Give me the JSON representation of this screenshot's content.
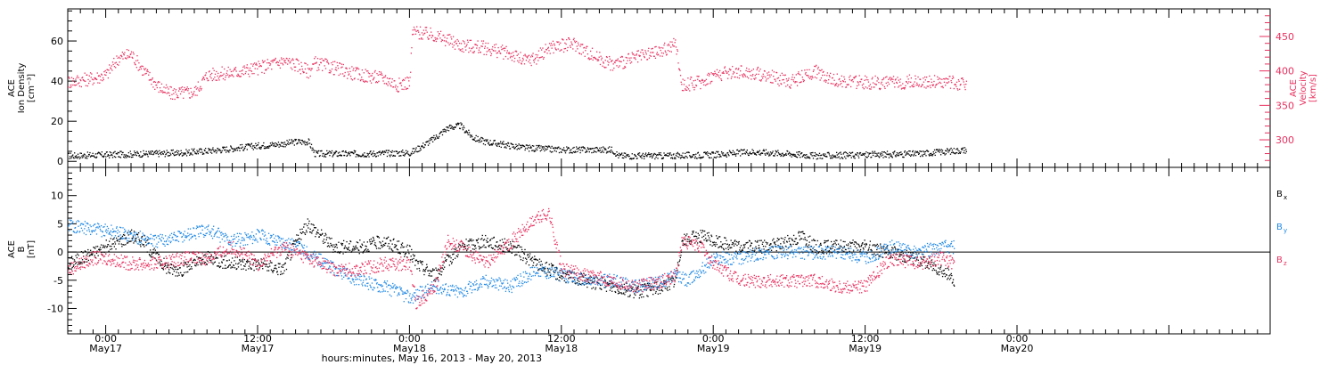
{
  "chart_data": [
    {
      "type": "scatter",
      "panel": "plasma",
      "left_axis": {
        "label_lines": [
          "ACE",
          "Ion Density",
          "[cm⁻³]"
        ],
        "range": [
          -3,
          76
        ],
        "ticks": [
          0,
          20,
          40,
          60
        ]
      },
      "right_axis": {
        "label_lines": [
          "ACE",
          "Velocity",
          "[km/s]"
        ],
        "range": [
          260,
          490
        ],
        "ticks": [
          300,
          350,
          400,
          450
        ],
        "color": "#e8305f"
      },
      "series": [
        {
          "axis": "left",
          "color": "#000000",
          "points": [
            [
              -3,
              3
            ],
            [
              0,
              3.5
            ],
            [
              3,
              4
            ],
            [
              6,
              4.5
            ],
            [
              9,
              6
            ],
            [
              12,
              8
            ],
            [
              14,
              9
            ],
            [
              15,
              10
            ],
            [
              16,
              10
            ],
            [
              16.5,
              4
            ],
            [
              20,
              4
            ],
            [
              24,
              4.5
            ],
            [
              24.5,
              6
            ],
            [
              26,
              12
            ],
            [
              27,
              17
            ],
            [
              28,
              18
            ],
            [
              29,
              12
            ],
            [
              30,
              10
            ],
            [
              33,
              7
            ],
            [
              36,
              6
            ],
            [
              40,
              6
            ],
            [
              40.5,
              3
            ],
            [
              44,
              3
            ],
            [
              48,
              3.5
            ],
            [
              51,
              5
            ],
            [
              54,
              4
            ],
            [
              56,
              3
            ],
            [
              60,
              3.5
            ],
            [
              64,
              4
            ],
            [
              66,
              5
            ],
            [
              67,
              5.5
            ],
            [
              68,
              6
            ]
          ]
        },
        {
          "axis": "right",
          "color": "#e8305f",
          "points": [
            [
              -3,
              385
            ],
            [
              -1,
              390
            ],
            [
              0,
              395
            ],
            [
              1,
              420
            ],
            [
              2,
              425
            ],
            [
              3,
              400
            ],
            [
              4,
              380
            ],
            [
              5,
              368
            ],
            [
              7,
              370
            ],
            [
              8,
              395
            ],
            [
              10,
              398
            ],
            [
              12,
              405
            ],
            [
              14,
              415
            ],
            [
              15,
              410
            ],
            [
              16,
              400
            ],
            [
              16.5,
              412
            ],
            [
              18,
              405
            ],
            [
              20,
              395
            ],
            [
              22,
              390
            ],
            [
              23,
              380
            ],
            [
              24,
              385
            ],
            [
              24.2,
              458
            ],
            [
              25,
              455
            ],
            [
              26,
              452
            ],
            [
              28,
              438
            ],
            [
              30,
              434
            ],
            [
              32,
              425
            ],
            [
              33,
              415
            ],
            [
              34,
              420
            ],
            [
              35,
              435
            ],
            [
              37,
              440
            ],
            [
              38,
              428
            ],
            [
              39,
              418
            ],
            [
              40,
              410
            ],
            [
              41,
              415
            ],
            [
              42,
              420
            ],
            [
              43,
              425
            ],
            [
              44,
              430
            ],
            [
              45,
              440
            ],
            [
              45.5,
              380
            ],
            [
              47,
              385
            ],
            [
              48,
              395
            ],
            [
              50,
              400
            ],
            [
              52,
              395
            ],
            [
              54,
              385
            ],
            [
              55,
              392
            ],
            [
              56,
              400
            ],
            [
              58,
              385
            ],
            [
              60,
              384
            ],
            [
              62,
              383
            ],
            [
              64,
              386
            ],
            [
              66,
              385
            ],
            [
              67,
              383
            ]
          ]
        }
      ]
    },
    {
      "type": "scatter",
      "panel": "magnetic_field",
      "left_axis": {
        "label_lines": [
          "ACE",
          "B",
          "[nT]"
        ],
        "range": [
          -14.5,
          15
        ],
        "ticks": [
          -10,
          -5,
          0,
          5,
          10
        ]
      },
      "zero_line": 0,
      "series": [
        {
          "name": "Bx",
          "color": "#000000",
          "points": [
            [
              -3,
              -2
            ],
            [
              -1,
              0
            ],
            [
              0,
              1
            ],
            [
              2,
              3
            ],
            [
              3,
              2
            ],
            [
              4,
              -1
            ],
            [
              5,
              -3
            ],
            [
              6,
              -3
            ],
            [
              8,
              -1
            ],
            [
              10,
              -2
            ],
            [
              12,
              -2
            ],
            [
              14,
              -3
            ],
            [
              15,
              2
            ],
            [
              16,
              5
            ],
            [
              17,
              3
            ],
            [
              18,
              1
            ],
            [
              20,
              1
            ],
            [
              22,
              2
            ],
            [
              24,
              0
            ],
            [
              24.5,
              -2
            ],
            [
              26,
              -4
            ],
            [
              28,
              1
            ],
            [
              30,
              2
            ],
            [
              32,
              1
            ],
            [
              34,
              -2
            ],
            [
              36,
              -4
            ],
            [
              38,
              -5
            ],
            [
              40,
              -6
            ],
            [
              42,
              -7
            ],
            [
              44,
              -6
            ],
            [
              45,
              -5
            ],
            [
              45.5,
              2
            ],
            [
              47,
              3
            ],
            [
              48,
              2
            ],
            [
              50,
              1
            ],
            [
              52,
              1
            ],
            [
              54,
              2
            ],
            [
              55,
              3
            ],
            [
              56,
              1
            ],
            [
              58,
              1
            ],
            [
              60,
              1
            ],
            [
              62,
              0
            ],
            [
              64,
              -1
            ],
            [
              66,
              -3
            ],
            [
              67,
              -5
            ]
          ]
        },
        {
          "name": "By",
          "color": "#1e88e5",
          "points": [
            [
              -3,
              5
            ],
            [
              -1,
              4
            ],
            [
              0,
              4
            ],
            [
              2,
              3
            ],
            [
              4,
              2
            ],
            [
              6,
              3
            ],
            [
              8,
              4
            ],
            [
              10,
              2
            ],
            [
              12,
              3
            ],
            [
              14,
              2
            ],
            [
              16,
              0
            ],
            [
              18,
              -3
            ],
            [
              20,
              -5
            ],
            [
              22,
              -6
            ],
            [
              23,
              -7
            ],
            [
              24,
              -8
            ],
            [
              26,
              -6
            ],
            [
              28,
              -7
            ],
            [
              30,
              -5
            ],
            [
              32,
              -6
            ],
            [
              34,
              -3
            ],
            [
              36,
              -4
            ],
            [
              38,
              -5
            ],
            [
              40,
              -5
            ],
            [
              42,
              -6
            ],
            [
              44,
              -5
            ],
            [
              45,
              -4
            ],
            [
              46,
              -5
            ],
            [
              48,
              -1
            ],
            [
              50,
              -1
            ],
            [
              52,
              0
            ],
            [
              54,
              0
            ],
            [
              56,
              0
            ],
            [
              58,
              0
            ],
            [
              60,
              -1
            ],
            [
              62,
              1
            ],
            [
              64,
              0
            ],
            [
              66,
              1
            ],
            [
              67,
              1
            ]
          ]
        },
        {
          "name": "Bz",
          "color": "#e8305f",
          "points": [
            [
              -3,
              -3
            ],
            [
              -1,
              -1
            ],
            [
              0,
              -1
            ],
            [
              2,
              -2
            ],
            [
              4,
              -2
            ],
            [
              6,
              -1
            ],
            [
              8,
              -1
            ],
            [
              10,
              1
            ],
            [
              12,
              -2
            ],
            [
              14,
              1
            ],
            [
              16,
              -1
            ],
            [
              18,
              -3
            ],
            [
              20,
              -3
            ],
            [
              22,
              -2
            ],
            [
              24,
              -2
            ],
            [
              24.5,
              -9
            ],
            [
              26,
              -6
            ],
            [
              27,
              2
            ],
            [
              28,
              1
            ],
            [
              30,
              -2
            ],
            [
              32,
              2
            ],
            [
              34,
              6
            ],
            [
              35,
              7
            ],
            [
              36,
              -3
            ],
            [
              38,
              -4
            ],
            [
              40,
              -5
            ],
            [
              42,
              -6
            ],
            [
              44,
              -5
            ],
            [
              45,
              -4
            ],
            [
              45.5,
              2
            ],
            [
              47,
              1
            ],
            [
              48,
              -2
            ],
            [
              50,
              -5
            ],
            [
              52,
              -5
            ],
            [
              54,
              -5
            ],
            [
              56,
              -5
            ],
            [
              58,
              -6
            ],
            [
              60,
              -6
            ],
            [
              62,
              -1
            ],
            [
              64,
              -2
            ],
            [
              66,
              -1
            ],
            [
              67,
              -2
            ]
          ]
        }
      ],
      "legend": [
        {
          "base": "B",
          "sub": "x",
          "color": "#000000"
        },
        {
          "base": "B",
          "sub": "y",
          "color": "#1e88e5"
        },
        {
          "base": "B",
          "sub": "z",
          "color": "#e8305f"
        }
      ]
    }
  ],
  "x_axis": {
    "range_hours": [
      -3,
      92
    ],
    "ticks": [
      {
        "hour": 0,
        "time": "0:00",
        "day": "May17"
      },
      {
        "hour": 12,
        "time": "12:00",
        "day": "May17"
      },
      {
        "hour": 24,
        "time": "0:00",
        "day": "May18"
      },
      {
        "hour": 36,
        "time": "12:00",
        "day": "May18"
      },
      {
        "hour": 48,
        "time": "0:00",
        "day": "May19"
      },
      {
        "hour": 60,
        "time": "12:00",
        "day": "May19"
      },
      {
        "hour": 72,
        "time": "0:00",
        "day": "May20"
      }
    ],
    "title": "hours:minutes, May 16, 2013 - May 20, 2013"
  }
}
